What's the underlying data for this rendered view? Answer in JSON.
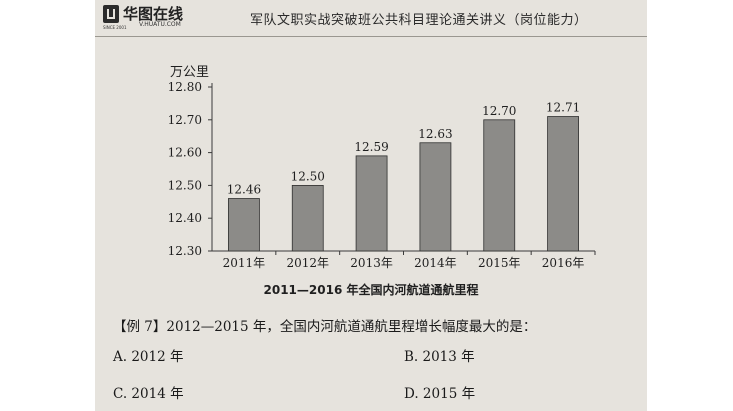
{
  "header": {
    "logo": "华图在线",
    "logo_url": "V.HUATU.COM",
    "logo_since": "SINCE 2001",
    "title": "军队文职实战突破班公共科目理论通关讲义（岗位能力）"
  },
  "chart_data": {
    "type": "bar",
    "title": "2011—2016 年全国内河航道通航里程",
    "ylabel": "万公里",
    "categories": [
      "2011年",
      "2012年",
      "2013年",
      "2014年",
      "2015年",
      "2016年"
    ],
    "values": [
      12.46,
      12.5,
      12.59,
      12.63,
      12.7,
      12.71
    ],
    "data_labels": [
      "12.46",
      "12.50",
      "12.59",
      "12.63",
      "12.70",
      "12.71"
    ],
    "ylim": [
      12.3,
      12.8
    ],
    "yticks": [
      "12.30",
      "12.40",
      "12.50",
      "12.60",
      "12.70",
      "12.80"
    ],
    "bar_color": "#8c8b88",
    "grid": false
  },
  "question": {
    "text": "【例 7】2012—2015 年，全国内河航道通航里程增长幅度最大的是：",
    "options": {
      "a": "A. 2012 年",
      "b": "B. 2013 年",
      "c": "C. 2014 年",
      "d": "D. 2015 年"
    }
  }
}
